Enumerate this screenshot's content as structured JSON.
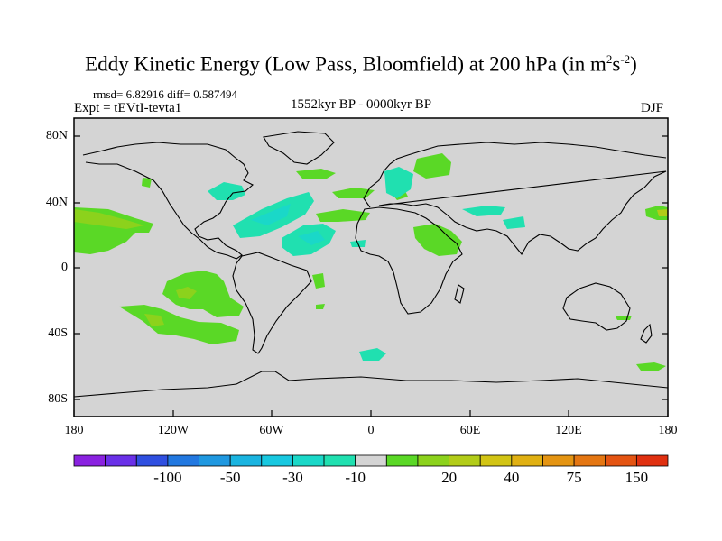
{
  "title": {
    "main": "Eddy Kinetic Energy (Low Pass, Bloomfield) at 200 hPa (in m",
    "sup1": "2",
    "mid": "s",
    "sup2": "-2",
    "close": ")"
  },
  "stats": "rmsd= 6.82916 diff= 0.587494",
  "expt": "Expt = tEVtI-tevta1",
  "period": "1552kyr BP - 0000kyr BP",
  "season": "DJF",
  "axes": {
    "lat_labels": [
      "80N",
      "40N",
      "0",
      "40S",
      "80S"
    ],
    "lon_labels": [
      "180",
      "120W",
      "60W",
      "0",
      "60E",
      "120E",
      "180"
    ]
  },
  "colorbar": {
    "colors": [
      "#8a22e0",
      "#6a30e8",
      "#2f4fe0",
      "#2278e0",
      "#1f98e0",
      "#1ab4e0",
      "#18c8e0",
      "#1ad8c8",
      "#20e0b0",
      "#d4d4d4",
      "#5ad826",
      "#8cd21c",
      "#b2cc18",
      "#d2c414",
      "#e0b012",
      "#e49412",
      "#e47612",
      "#e45412",
      "#e03010"
    ],
    "labels": [
      "-100",
      "-50",
      "-30",
      "-10",
      "20",
      "40",
      "75",
      "150"
    ]
  },
  "palette": {
    "background_field": "#d4d4d4",
    "positive_low": "#5ad826",
    "positive_mid": "#8cd21c",
    "positive_high": "#b2cc18",
    "positive_top": "#d2c414",
    "negative_low": "#20e0b0",
    "negative_mid": "#1ad8c8",
    "negative_high": "#18c8e0"
  }
}
